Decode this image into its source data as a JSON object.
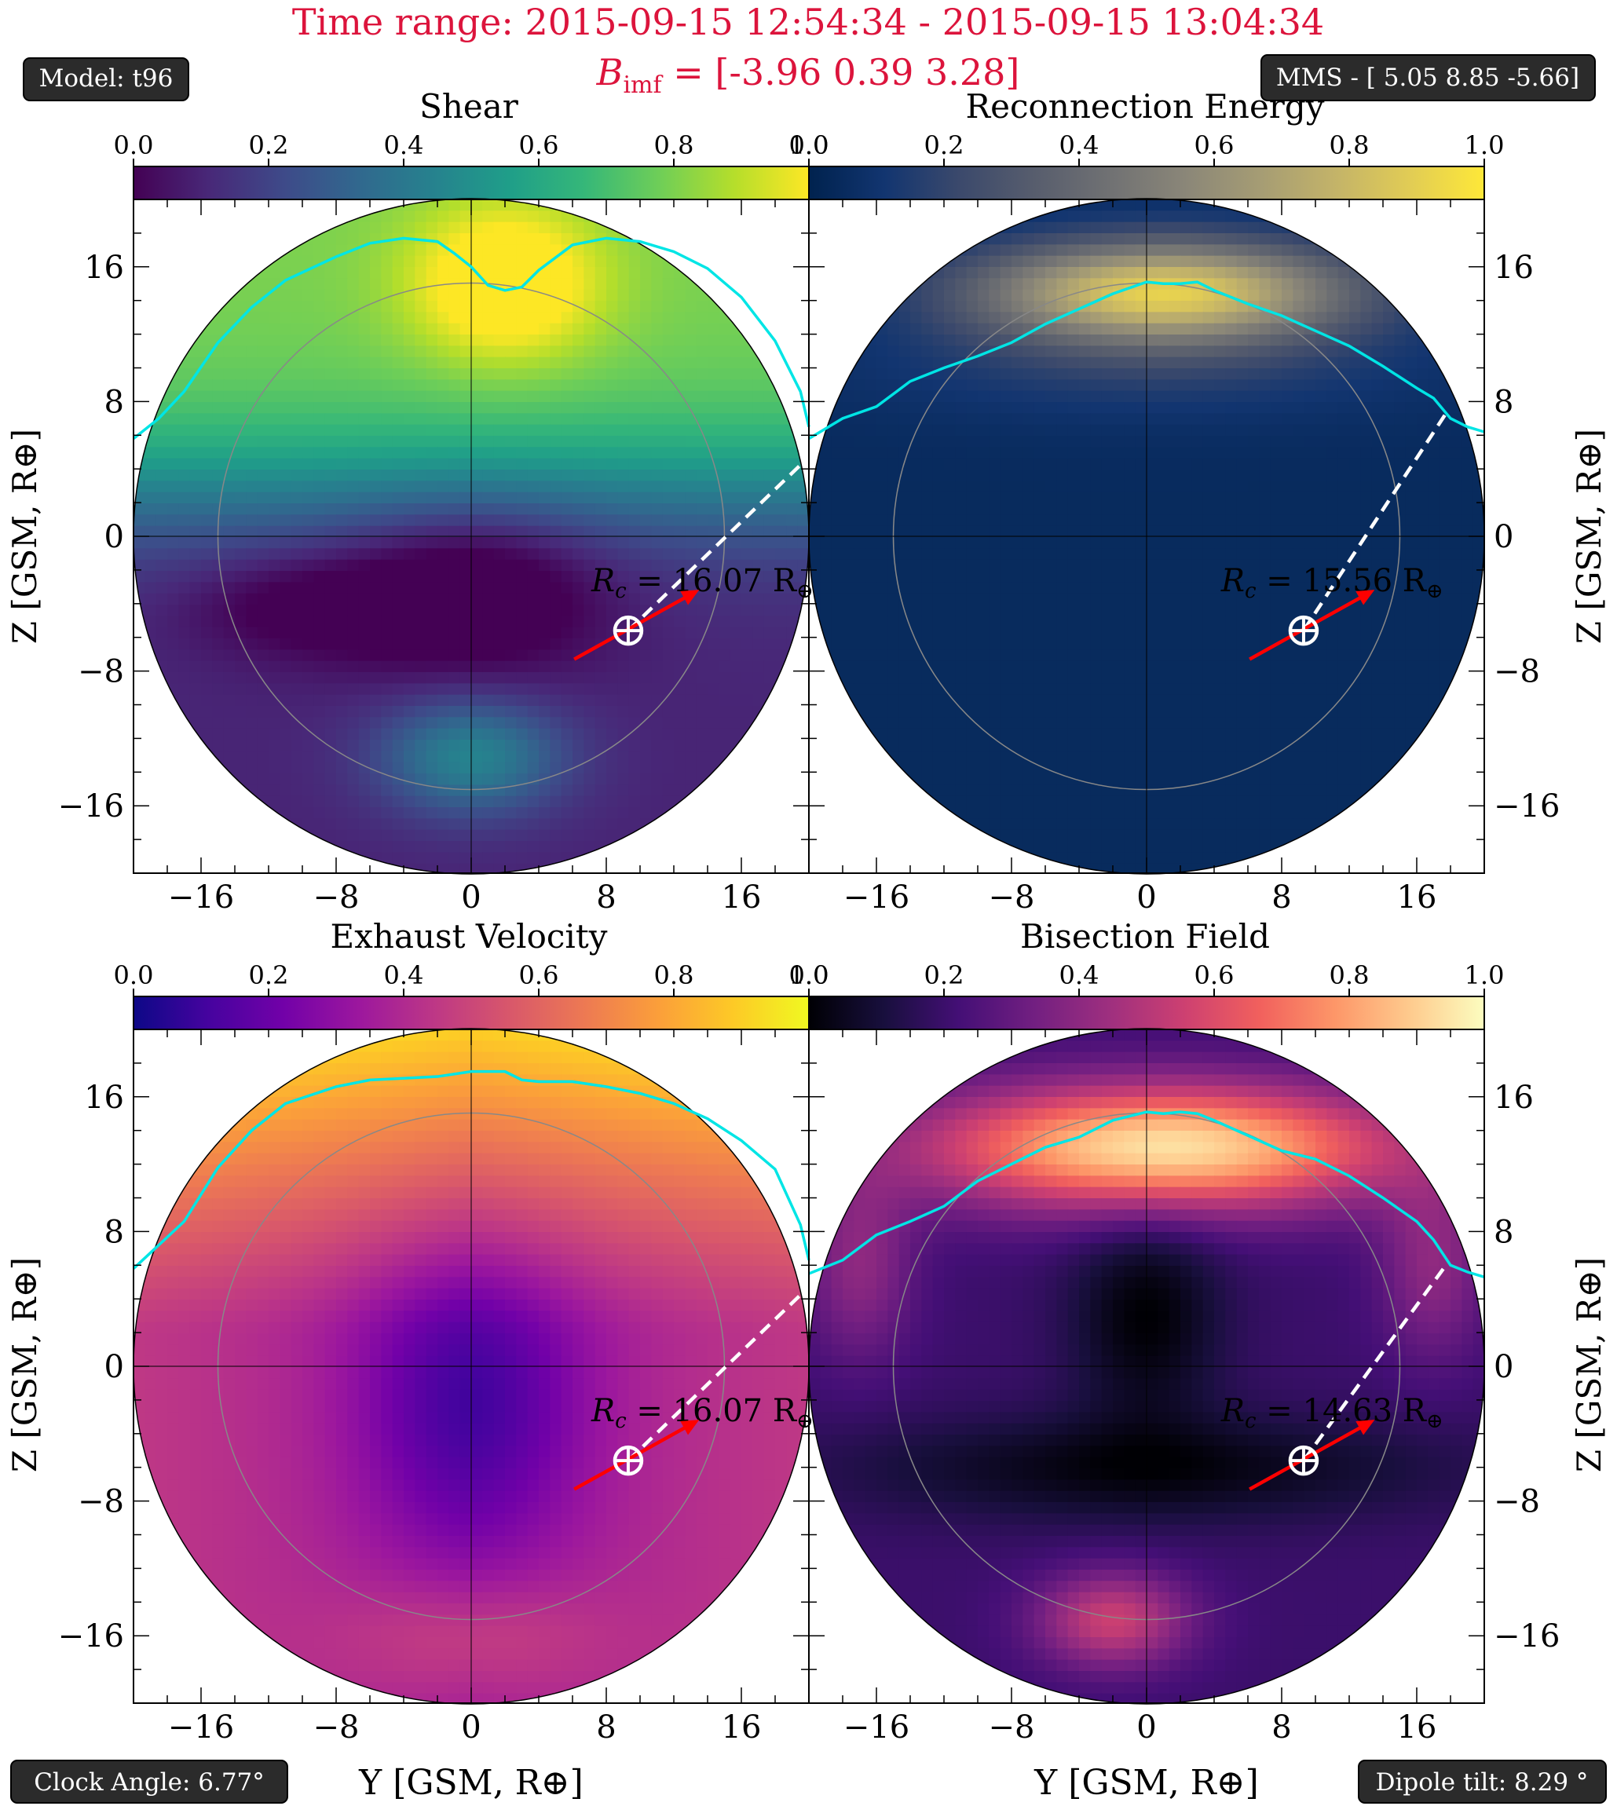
{
  "title": {
    "line1": "Time range: 2015-09-15 12:54:34 - 2015-09-15 13:04:34",
    "line2_prefix": "B",
    "line2_sub": "imf",
    "line2_rest": " = [-3.96 0.39 3.28]",
    "color": "#dc143c"
  },
  "badges": {
    "model": "Model: t96",
    "mms": "MMS - [ 5.05 8.85 -5.66]",
    "clock_angle": "Clock Angle: 6.77°",
    "dipole_tilt": "Dipole tilt: 8.29 °",
    "bg": "#2b2b2b"
  },
  "axes_text": {
    "ylabel": "Z [GSM, R⊕]",
    "xlabel": "Y [GSM, R⊕]"
  },
  "colors": {
    "boundary": "#00e5e5",
    "arrow": "#ff0000",
    "dashed": "#ffffff",
    "marker": "#ffffff"
  },
  "chart_data": [
    {
      "type": "heatmap",
      "title": "Shear",
      "colormap": "viridis",
      "colorbar_ticks": [
        "0.0",
        "0.2",
        "0.4",
        "0.6",
        "0.8",
        "1.0"
      ],
      "rc_label_prefix": "R",
      "rc_label_sub": "c",
      "rc_label_value": " = 16.07 R",
      "rc_value": 16.07,
      "xlim": [
        -20,
        20
      ],
      "ylim": [
        -20,
        20
      ],
      "xticks": [
        -16,
        -8,
        0,
        8,
        16
      ],
      "yticks": [
        -16,
        -8,
        0,
        8,
        16
      ],
      "ytick_side": "left",
      "spacecraft": [
        9.3,
        -5.6
      ],
      "dash_end": [
        20.5,
        5.2
      ],
      "boundary_y": [
        -20,
        -18.5,
        -17,
        -15,
        -13,
        -11,
        -8,
        -6,
        -4,
        -2,
        -1,
        0,
        1,
        2,
        3,
        4,
        6,
        8,
        10,
        12,
        14,
        16,
        18,
        19.5,
        20
      ],
      "boundary_z": [
        5.8,
        7.0,
        8.6,
        11.5,
        13.6,
        15.2,
        16.6,
        17.4,
        17.7,
        17.5,
        16.8,
        16.0,
        14.9,
        14.6,
        14.8,
        15.8,
        17.3,
        17.7,
        17.5,
        16.9,
        15.9,
        14.2,
        11.6,
        8.6,
        6.5
      ]
    },
    {
      "type": "heatmap",
      "title": "Reconnection Energy",
      "colormap": "cividis",
      "colorbar_ticks": [
        "0.0",
        "0.2",
        "0.4",
        "0.6",
        "0.8",
        "1.0"
      ],
      "rc_label_prefix": "R",
      "rc_label_sub": "c",
      "rc_label_value": " = 15.56 R",
      "rc_value": 15.56,
      "xlim": [
        -20,
        20
      ],
      "ylim": [
        -20,
        20
      ],
      "xticks": [
        -16,
        -8,
        0,
        8,
        16
      ],
      "yticks": [
        -16,
        -8,
        0,
        8,
        16
      ],
      "ytick_side": "right",
      "spacecraft": [
        9.3,
        -5.6
      ],
      "dash_end": [
        17.8,
        7.4
      ],
      "boundary_y": [
        -20,
        -18,
        -16,
        -14,
        -12,
        -10,
        -8,
        -6,
        -4,
        -2,
        0,
        1,
        2,
        3,
        4,
        6,
        8,
        10,
        12,
        14,
        16,
        17,
        18,
        19,
        20
      ],
      "boundary_z": [
        5.8,
        7.0,
        7.7,
        9.2,
        10.0,
        10.7,
        11.5,
        12.6,
        13.5,
        14.4,
        15.1,
        15.0,
        15.0,
        15.1,
        14.6,
        13.8,
        13.1,
        12.2,
        11.3,
        10.1,
        8.8,
        8.2,
        7.0,
        6.5,
        6.2
      ]
    },
    {
      "type": "heatmap",
      "title": "Exhaust Velocity",
      "colormap": "plasma",
      "colorbar_ticks": [
        "0.0",
        "0.2",
        "0.4",
        "0.6",
        "0.8",
        "1.0"
      ],
      "rc_label_prefix": "R",
      "rc_label_sub": "c",
      "rc_label_value": " = 16.07 R",
      "rc_value": 16.07,
      "xlim": [
        -20,
        20
      ],
      "ylim": [
        -20,
        20
      ],
      "xticks": [
        -16,
        -8,
        0,
        8,
        16
      ],
      "yticks": [
        -16,
        -8,
        0,
        8,
        16
      ],
      "ytick_side": "left",
      "spacecraft": [
        9.3,
        -5.6
      ],
      "dash_end": [
        20.5,
        5.2
      ],
      "boundary_y": [
        -20,
        -18.5,
        -17,
        -15,
        -13,
        -11,
        -8,
        -6,
        -4,
        -2,
        0,
        2,
        3,
        4,
        6,
        8,
        10,
        12,
        14,
        16,
        18,
        19.5,
        20
      ],
      "boundary_z": [
        5.8,
        7.2,
        8.6,
        11.8,
        14.0,
        15.6,
        16.6,
        17.0,
        17.1,
        17.2,
        17.5,
        17.5,
        17.0,
        16.9,
        16.9,
        16.6,
        16.2,
        15.6,
        14.7,
        13.4,
        11.7,
        8.4,
        6.3
      ]
    },
    {
      "type": "heatmap",
      "title": "Bisection Field",
      "colormap": "magma",
      "colorbar_ticks": [
        "0.0",
        "0.2",
        "0.4",
        "0.6",
        "0.8",
        "1.0"
      ],
      "rc_label_prefix": "R",
      "rc_label_sub": "c",
      "rc_label_value": " = 14.63 R",
      "rc_value": 14.63,
      "xlim": [
        -20,
        20
      ],
      "ylim": [
        -20,
        20
      ],
      "xticks": [
        -16,
        -8,
        0,
        8,
        16
      ],
      "yticks": [
        -16,
        -8,
        0,
        8,
        16
      ],
      "ytick_side": "right",
      "spacecraft": [
        9.3,
        -5.6
      ],
      "dash_end": [
        17.8,
        6.1
      ],
      "boundary_y": [
        -20,
        -18,
        -16,
        -14,
        -12,
        -10,
        -8,
        -6,
        -4,
        -2,
        0,
        1,
        2,
        3,
        4,
        6,
        8,
        10,
        12,
        14,
        16,
        17,
        18,
        19,
        20
      ],
      "boundary_z": [
        5.5,
        6.3,
        7.8,
        8.6,
        9.5,
        11.0,
        12.0,
        13.0,
        13.6,
        14.6,
        15.1,
        15.0,
        15.1,
        15.0,
        14.6,
        13.7,
        12.8,
        12.3,
        11.3,
        10.0,
        8.6,
        7.5,
        6.0,
        5.6,
        5.3
      ]
    }
  ]
}
